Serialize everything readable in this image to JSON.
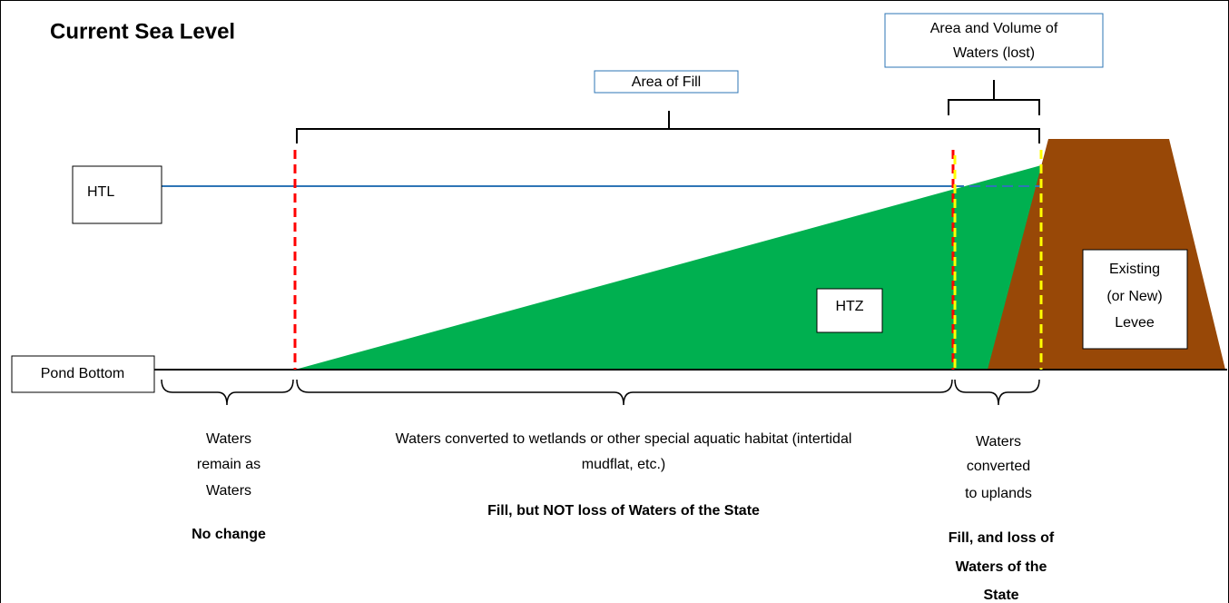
{
  "title": "Current Sea Level",
  "labels": {
    "htl": "HTL",
    "pond_bottom": "Pond Bottom",
    "htz": "HTZ",
    "levee": [
      "Existing",
      "(or New)",
      "Levee"
    ],
    "area_of_fill": "Area of Fill",
    "area_volume": [
      "Area and Volume of",
      "Waters (lost)"
    ]
  },
  "zones": [
    {
      "description": [
        "Waters",
        "remain as",
        "Waters"
      ],
      "outcome": [
        "No change"
      ]
    },
    {
      "description": [
        "Waters converted to wetlands or other special aquatic habitat (intertidal",
        "mudflat, etc.)"
      ],
      "outcome": [
        "Fill, but NOT loss of Waters of the State"
      ]
    },
    {
      "description": [
        "Waters",
        "converted",
        "to uplands"
      ],
      "outcome": [
        "Fill, and loss of",
        "Waters of the",
        "State"
      ]
    }
  ]
}
